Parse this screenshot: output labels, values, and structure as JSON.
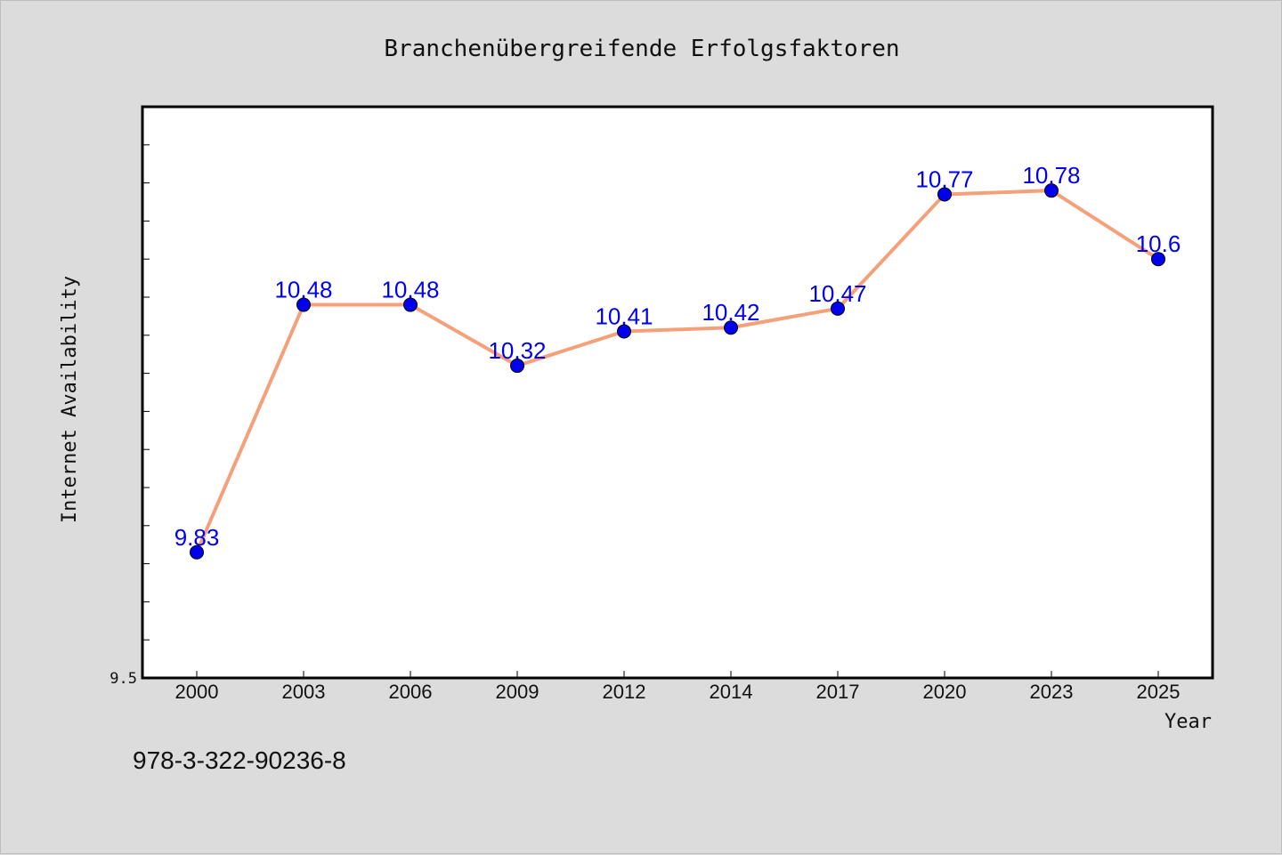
{
  "chart_data": {
    "type": "line",
    "title": "Branchenübergreifende Erfolgsfaktoren",
    "xlabel": "Year",
    "ylabel": "Internet Availability",
    "categories": [
      "2000",
      "2003",
      "2006",
      "2009",
      "2012",
      "2014",
      "2017",
      "2020",
      "2023",
      "2025"
    ],
    "series": [
      {
        "values": [
          9.83,
          10.48,
          10.48,
          10.32,
          10.41,
          10.42,
          10.47,
          10.77,
          10.78,
          10.6
        ]
      }
    ],
    "data_labels": [
      "9.83",
      "10.48",
      "10.48",
      "10.32",
      "10.41",
      "10.42",
      "10.47",
      "10.77",
      "10.78",
      "10.6"
    ],
    "ylim": [
      9.5,
      11.0
    ],
    "yticks_labeled": [
      "9.5"
    ],
    "grid": false,
    "line_color": "#f4a07a",
    "marker_color": "#0000ee",
    "label_color": "#0000ee"
  },
  "footnote": "978-3-322-90236-8"
}
